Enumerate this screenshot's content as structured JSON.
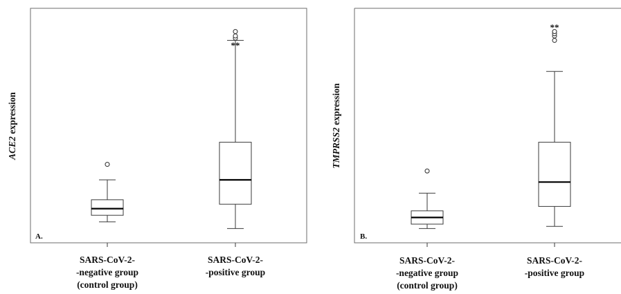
{
  "chart_data": [
    {
      "type": "box",
      "panel_label": "A.",
      "ylabel_gene": "ACE2",
      "ylabel_suffix": " expression",
      "categories": [
        [
          "SARS-CoV-2-",
          "-negative group",
          "(control group)"
        ],
        [
          "SARS-CoV-2-",
          "-positive group"
        ]
      ],
      "ylim": [
        0,
        100
      ],
      "boxes": [
        {
          "whisker_low": 6,
          "q1": 9,
          "median": 12,
          "q3": 16,
          "whisker_high": 25,
          "outliers": [
            32
          ]
        },
        {
          "whisker_low": 3,
          "q1": 14,
          "median": 25,
          "q3": 42,
          "whisker_high": 88,
          "outliers": [
            89,
            90,
            92
          ]
        }
      ],
      "annotations": [
        "",
        "**"
      ]
    },
    {
      "type": "box",
      "panel_label": "B.",
      "ylabel_gene": "TMPRSS2",
      "ylabel_suffix": " expression",
      "categories": [
        [
          "SARS-CoV-2-",
          "-negative group",
          "(control group)"
        ],
        [
          "SARS-CoV-2-",
          "-positive group"
        ]
      ],
      "ylim": [
        0,
        100
      ],
      "boxes": [
        {
          "whisker_low": 3,
          "q1": 5,
          "median": 8,
          "q3": 11,
          "whisker_high": 19,
          "outliers": [
            29
          ]
        },
        {
          "whisker_low": 4,
          "q1": 13,
          "median": 24,
          "q3": 42,
          "whisker_high": 74,
          "outliers": [
            88,
            90,
            91,
            92
          ]
        }
      ],
      "annotations": [
        "",
        "**"
      ]
    }
  ]
}
